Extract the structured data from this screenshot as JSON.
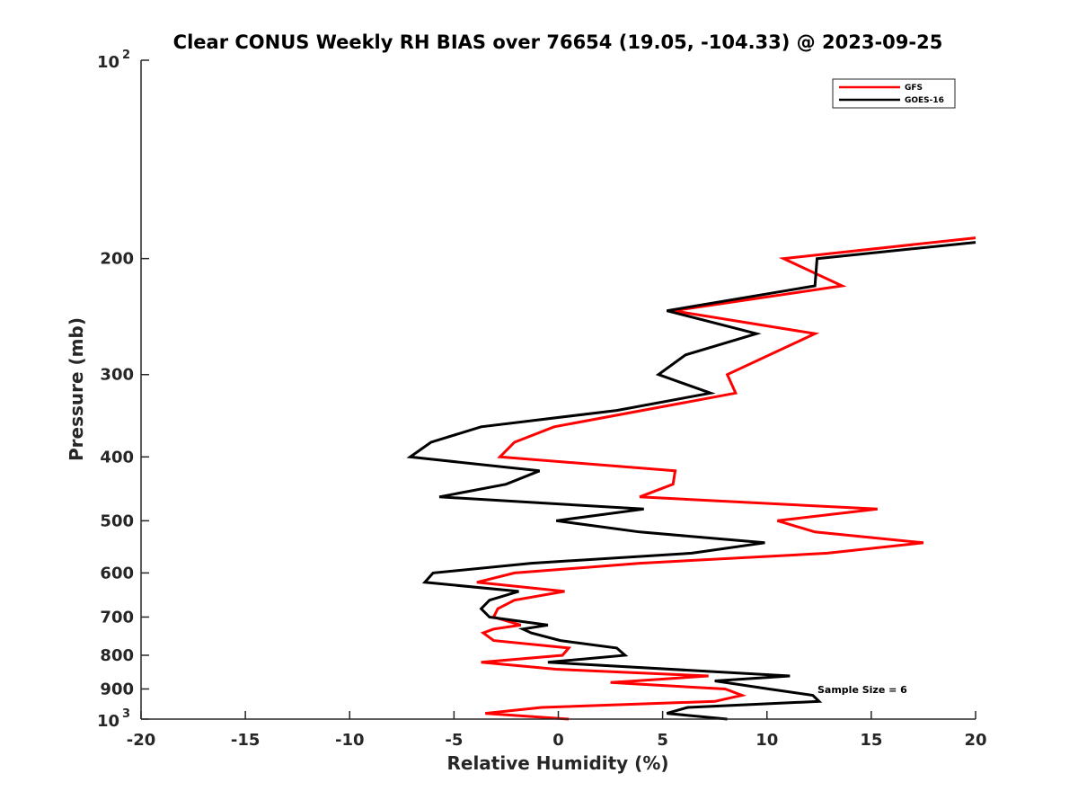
{
  "chart_data": {
    "type": "line",
    "title": "Clear CONUS Weekly RH BIAS over 76654 (19.05, -104.33) @ 2023-09-25",
    "xlabel": "Relative Humidity (%)",
    "ylabel": "Pressure (mb)",
    "xlim": [
      -20,
      20
    ],
    "ylim": [
      100,
      1000
    ],
    "yscale": "log",
    "y_reversed": true,
    "xticks": [
      "-20",
      "-15",
      "-10",
      "-5",
      "0",
      "5",
      "10",
      "15",
      "20"
    ],
    "xtick_values": [
      -20,
      -15,
      -10,
      -5,
      0,
      5,
      10,
      15,
      20
    ],
    "yticks": [
      "200",
      "300",
      "400",
      "500",
      "600",
      "700",
      "800",
      "900"
    ],
    "ytick_values": [
      200,
      300,
      400,
      500,
      600,
      700,
      800,
      900
    ],
    "ytick_decades": [
      {
        "base": "10",
        "exp": "2",
        "value": 100
      },
      {
        "base": "10",
        "exp": "3",
        "value": 1000
      }
    ],
    "legend_placement": "top-right",
    "annotation": "Sample Size = 6",
    "series": [
      {
        "name": "GFS",
        "color": "#ff0000",
        "pressure": [
          186,
          200,
          220,
          240,
          260,
          300,
          320,
          360,
          380,
          400,
          420,
          440,
          460,
          480,
          500,
          520,
          540,
          560,
          580,
          600,
          620,
          640,
          660,
          680,
          700,
          720,
          730,
          740,
          760,
          780,
          800,
          820,
          840,
          860,
          875,
          880,
          900,
          920,
          940,
          960,
          980,
          1000
        ],
        "rh": [
          20.0,
          10.8,
          13.6,
          5.5,
          12.3,
          8.1,
          8.5,
          -0.2,
          -2.1,
          -2.8,
          5.6,
          5.5,
          3.9,
          15.3,
          10.5,
          12.3,
          17.5,
          12.9,
          3.9,
          -2.1,
          -3.9,
          0.3,
          -2.1,
          -2.9,
          -3.1,
          -1.8,
          -3.1,
          -3.6,
          -3.1,
          0.5,
          0.2,
          -3.7,
          -0.1,
          7.2,
          3.7,
          2.5,
          8.0,
          8.8,
          7.5,
          -0.8,
          -3.5,
          0.5
        ]
      },
      {
        "name": "GOES-16",
        "color": "#000000",
        "pressure": [
          189,
          200,
          220,
          240,
          260,
          280,
          300,
          320,
          340,
          360,
          380,
          400,
          420,
          440,
          460,
          480,
          500,
          520,
          540,
          560,
          580,
          600,
          620,
          640,
          660,
          680,
          700,
          720,
          730,
          740,
          760,
          780,
          800,
          820,
          860,
          875,
          900,
          920,
          940,
          960,
          980,
          1000
        ],
        "rh": [
          20.0,
          12.4,
          12.3,
          5.2,
          9.5,
          6.1,
          4.8,
          7.3,
          2.8,
          -3.7,
          -6.1,
          -7.1,
          -0.9,
          -2.5,
          -5.7,
          4.1,
          -0.1,
          3.9,
          9.9,
          6.4,
          -1.3,
          -6.0,
          -6.4,
          -1.9,
          -3.3,
          -3.7,
          -3.3,
          -0.5,
          -1.7,
          -1.3,
          0.1,
          2.8,
          3.2,
          -0.5,
          11.1,
          7.5,
          10.1,
          12.2,
          12.5,
          6.2,
          5.2,
          8.1
        ]
      }
    ]
  }
}
